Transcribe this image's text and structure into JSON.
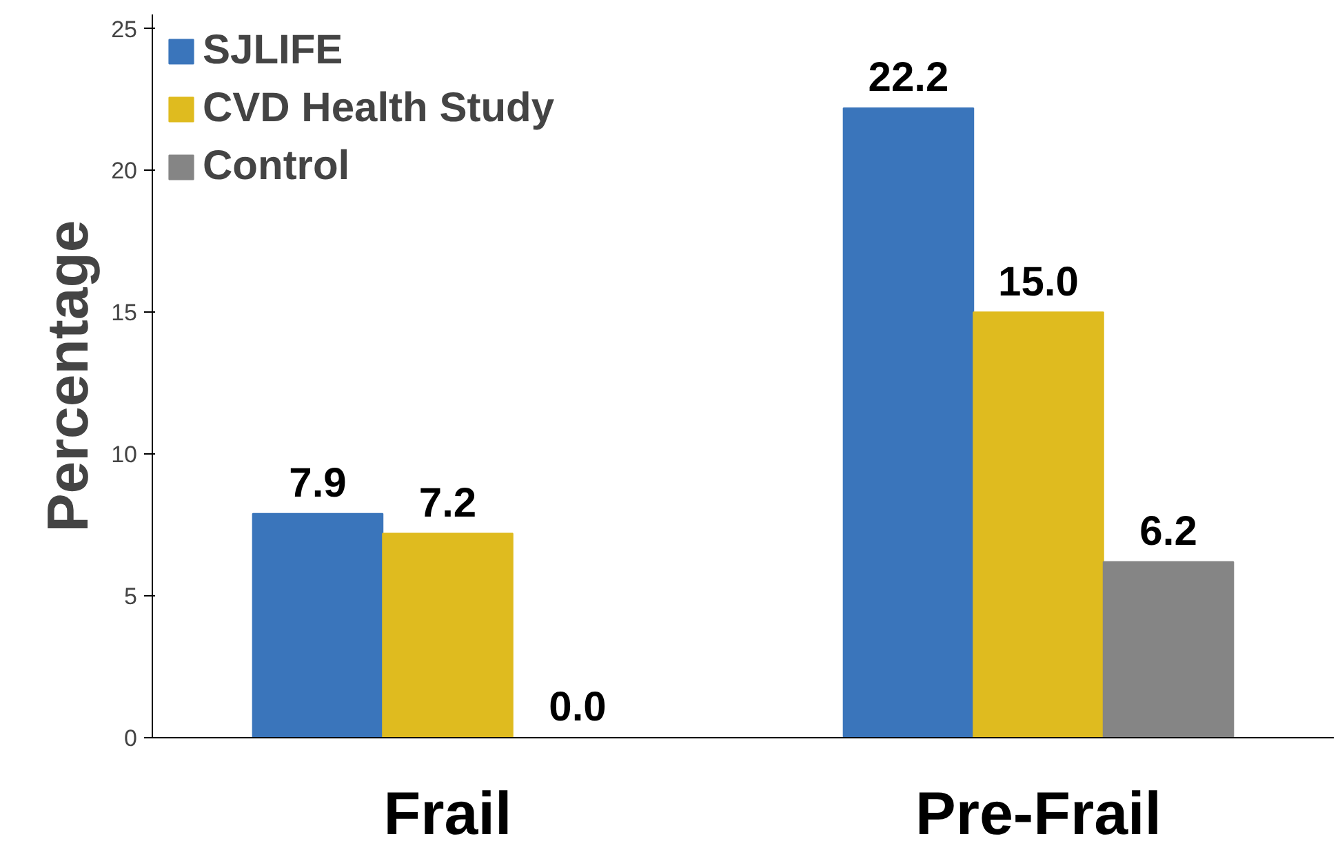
{
  "chart_data": {
    "type": "bar",
    "ylabel": "Percentage",
    "categories": [
      "Frail",
      "Pre-Frail"
    ],
    "series": [
      {
        "name": "SJLIFE",
        "color": "#3a75bb",
        "values": [
          7.9,
          22.2
        ],
        "value_labels": [
          "7.9",
          "22.2"
        ]
      },
      {
        "name": "CVD Health Study",
        "color": "#dfbb1f",
        "values": [
          7.2,
          15.0
        ],
        "value_labels": [
          "7.2",
          "15.0"
        ]
      },
      {
        "name": "Control",
        "color": "#858585",
        "values": [
          0.0,
          6.2
        ],
        "value_labels": [
          "0.0",
          "6.2"
        ]
      }
    ],
    "ylim": [
      0,
      25.5
    ],
    "yticks": [
      0,
      5,
      10,
      15,
      20,
      25
    ],
    "grid": false,
    "legend": "top left"
  }
}
